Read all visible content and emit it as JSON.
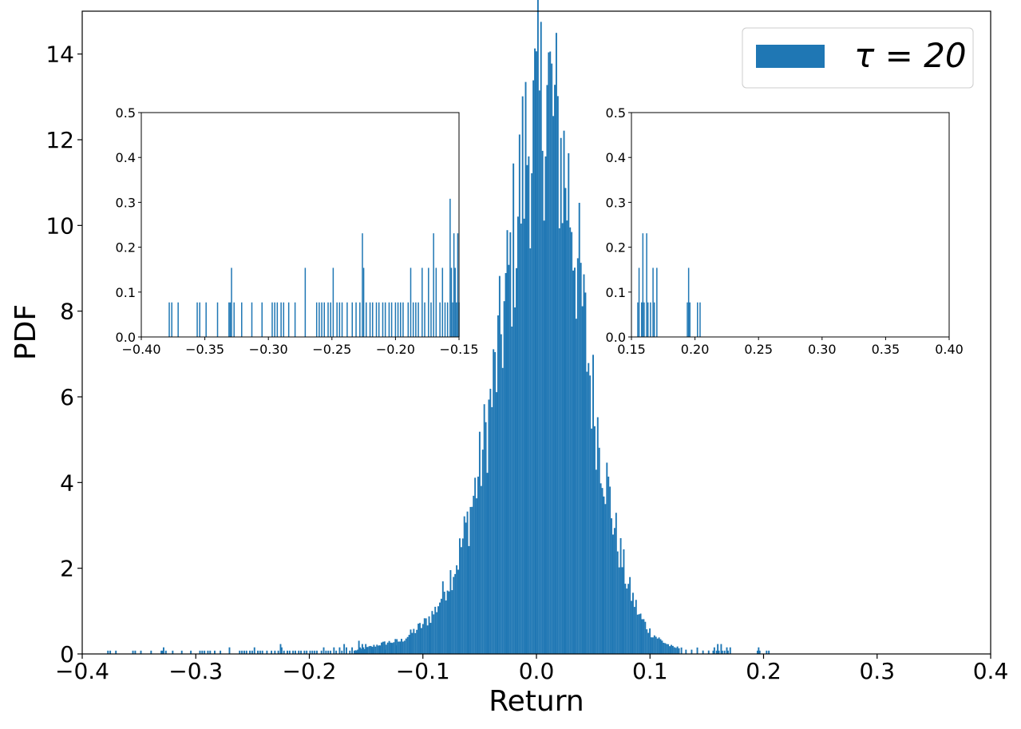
{
  "chart_data": [
    {
      "id": "main",
      "type": "bar",
      "subtype": "histogram",
      "xlabel": "Return",
      "ylabel": "PDF",
      "xlim": [
        -0.4,
        0.4
      ],
      "ylim": [
        0,
        15
      ],
      "xticks": [
        "−0.4",
        "−0.3",
        "−0.2",
        "−0.1",
        "0.0",
        "0.1",
        "0.2",
        "0.3",
        "0.4"
      ],
      "xtick_values": [
        -0.4,
        -0.3,
        -0.2,
        -0.1,
        0.0,
        0.1,
        0.2,
        0.3,
        0.4
      ],
      "yticks": [
        "0",
        "2",
        "4",
        "6",
        "8",
        "10",
        "12",
        "14"
      ],
      "ytick_values": [
        0,
        2,
        4,
        6,
        8,
        10,
        12,
        14
      ],
      "grid": false,
      "legend": {
        "placement": "top-right",
        "entries": [
          {
            "label": "τ = 20",
            "color": "#1f77b4"
          }
        ]
      },
      "series": [
        {
          "color": "#1f77b4",
          "bin_width": 0.00135,
          "envelope_sigma": 0.035,
          "envelope_mean": 0.006,
          "envelope_peak": 13.2,
          "x": [
            -0.12,
            -0.11,
            -0.1,
            -0.09,
            -0.08,
            -0.07,
            -0.06,
            -0.05,
            -0.04,
            -0.03,
            -0.02,
            -0.01,
            0.0,
            0.01,
            0.02,
            0.03,
            0.04,
            0.05,
            0.06,
            0.07,
            0.08,
            0.09,
            0.1,
            0.11,
            0.12
          ],
          "values": [
            0.3,
            0.5,
            0.7,
            1.0,
            1.6,
            2.2,
            3.2,
            4.4,
            6.0,
            7.8,
            9.8,
            11.8,
            12.5,
            13.2,
            11.8,
            10.5,
            8.0,
            5.8,
            4.2,
            2.7,
            1.6,
            0.9,
            0.5,
            0.3,
            0.15
          ]
        }
      ]
    },
    {
      "id": "inset-left",
      "type": "bar",
      "subtype": "histogram",
      "xlim": [
        -0.4,
        -0.15
      ],
      "ylim": [
        0,
        0.5
      ],
      "xticks": [
        "−0.40",
        "−0.35",
        "−0.30",
        "−0.25",
        "−0.20",
        "−0.15"
      ],
      "xtick_values": [
        -0.4,
        -0.35,
        -0.3,
        -0.25,
        -0.2,
        -0.15
      ],
      "yticks": [
        "0.0",
        "0.1",
        "0.2",
        "0.3",
        "0.4",
        "0.5"
      ],
      "ytick_values": [
        0,
        0.1,
        0.2,
        0.3,
        0.4,
        0.5
      ],
      "series": [
        {
          "color": "#1f77b4",
          "x": [
            -0.378,
            -0.376,
            -0.371,
            -0.356,
            -0.354,
            -0.349,
            -0.34,
            -0.331,
            -0.33,
            -0.329,
            -0.327,
            -0.321,
            -0.313,
            -0.305,
            -0.297,
            -0.295,
            -0.293,
            -0.29,
            -0.288,
            -0.284,
            -0.279,
            -0.271,
            -0.262,
            -0.26,
            -0.258,
            -0.256,
            -0.253,
            -0.251,
            -0.249,
            -0.246,
            -0.244,
            -0.242,
            -0.238,
            -0.234,
            -0.231,
            -0.228,
            -0.226,
            -0.225,
            -0.223,
            -0.22,
            -0.218,
            -0.215,
            -0.213,
            -0.21,
            -0.208,
            -0.205,
            -0.203,
            -0.2,
            -0.198,
            -0.196,
            -0.194,
            -0.19,
            -0.188,
            -0.186,
            -0.184,
            -0.182,
            -0.179,
            -0.177,
            -0.174,
            -0.172,
            -0.17,
            -0.168,
            -0.165,
            -0.163,
            -0.161,
            -0.159,
            -0.157,
            -0.156,
            -0.155,
            -0.154,
            -0.153,
            -0.152,
            -0.151,
            -0.15
          ],
          "values": [
            0.077,
            0.077,
            0.077,
            0.077,
            0.077,
            0.077,
            0.077,
            0.077,
            0.077,
            0.154,
            0.077,
            0.077,
            0.077,
            0.077,
            0.077,
            0.077,
            0.077,
            0.077,
            0.077,
            0.077,
            0.077,
            0.154,
            0.077,
            0.077,
            0.077,
            0.077,
            0.077,
            0.077,
            0.154,
            0.077,
            0.077,
            0.077,
            0.077,
            0.077,
            0.077,
            0.077,
            0.231,
            0.154,
            0.077,
            0.077,
            0.077,
            0.077,
            0.077,
            0.077,
            0.077,
            0.077,
            0.077,
            0.077,
            0.077,
            0.077,
            0.077,
            0.077,
            0.154,
            0.077,
            0.077,
            0.077,
            0.154,
            0.077,
            0.154,
            0.077,
            0.231,
            0.154,
            0.077,
            0.154,
            0.077,
            0.077,
            0.308,
            0.154,
            0.077,
            0.231,
            0.154,
            0.077,
            0.231,
            0.077
          ]
        }
      ]
    },
    {
      "id": "inset-right",
      "type": "bar",
      "subtype": "histogram",
      "xlim": [
        0.15,
        0.4
      ],
      "ylim": [
        0,
        0.5
      ],
      "xticks": [
        "0.15",
        "0.20",
        "0.25",
        "0.30",
        "0.35",
        "0.40"
      ],
      "xtick_values": [
        0.15,
        0.2,
        0.25,
        0.3,
        0.35,
        0.4
      ],
      "yticks": [
        "0.0",
        "0.1",
        "0.2",
        "0.3",
        "0.4",
        "0.5"
      ],
      "ytick_values": [
        0,
        0.1,
        0.2,
        0.3,
        0.4,
        0.5
      ],
      "series": [
        {
          "color": "#1f77b4",
          "x": [
            0.155,
            0.156,
            0.158,
            0.159,
            0.16,
            0.162,
            0.163,
            0.165,
            0.167,
            0.168,
            0.17,
            0.194,
            0.195,
            0.196,
            0.202,
            0.204
          ],
          "values": [
            0.077,
            0.154,
            0.077,
            0.231,
            0.077,
            0.231,
            0.077,
            0.077,
            0.154,
            0.077,
            0.154,
            0.077,
            0.154,
            0.077,
            0.077,
            0.077
          ]
        }
      ]
    }
  ]
}
